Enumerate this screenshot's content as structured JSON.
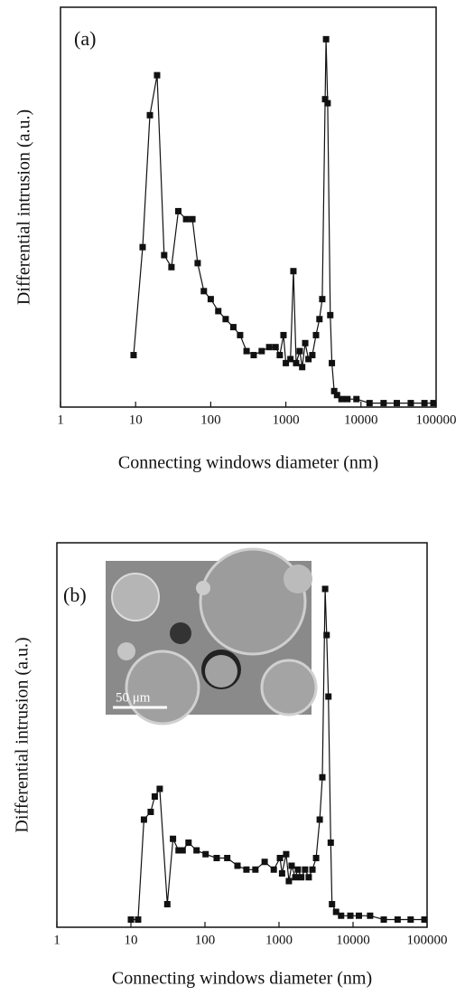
{
  "chart_data": [
    {
      "type": "line",
      "annotation": "(a)",
      "xlabel": "Connecting windows diameter (nm)",
      "ylabel": "Differential intrusion (a.u.)",
      "xscale": "log",
      "xlim": [
        1,
        100000
      ],
      "xticks": [
        1,
        10,
        100,
        1000,
        10000,
        100000
      ],
      "ylim": [
        0,
        100
      ],
      "color": "#111111",
      "x": [
        9.4,
        12.4,
        15.5,
        19.3,
        24,
        30,
        37,
        47,
        57,
        67,
        81,
        100,
        126,
        158,
        200,
        246,
        300,
        373,
        477,
        600,
        730,
        830,
        930,
        1000,
        1150,
        1260,
        1370,
        1530,
        1650,
        1810,
        2000,
        2250,
        2520,
        2800,
        3050,
        3330,
        3430,
        3600,
        3900,
        4100,
        4400,
        4800,
        5500,
        6600,
        8700,
        13000,
        20000,
        30000,
        46000,
        70000,
        92000
      ],
      "values": [
        13,
        40,
        73,
        83,
        38,
        35,
        49,
        47,
        47,
        36,
        29,
        27,
        24,
        22,
        20,
        18,
        14,
        13,
        14,
        15,
        15,
        13,
        18,
        11,
        12,
        34,
        11,
        14,
        10,
        16,
        12,
        13,
        18,
        22,
        27,
        77,
        92,
        76,
        23,
        11,
        4,
        3,
        2,
        2,
        2,
        1,
        1,
        1,
        1,
        1,
        1
      ]
    },
    {
      "type": "line",
      "annotation": "(b)",
      "xlabel": "Connecting windows diameter (nm)",
      "ylabel": "Differential intrusion (a.u.)",
      "xscale": "log",
      "xlim": [
        1,
        100000
      ],
      "xticks": [
        1,
        10,
        100,
        1000,
        10000,
        100000
      ],
      "ylim": [
        0,
        100
      ],
      "color": "#111111",
      "inset_label": "50 μm",
      "x": [
        10,
        12.5,
        15,
        18.5,
        21,
        24.5,
        31,
        37,
        44,
        50,
        60,
        77,
        102,
        144,
        200,
        275,
        363,
        480,
        640,
        850,
        1030,
        1100,
        1250,
        1360,
        1480,
        1660,
        1800,
        2000,
        2250,
        2520,
        2830,
        3170,
        3550,
        3850,
        4200,
        4400,
        4650,
        5000,
        5200,
        5900,
        6900,
        9200,
        12000,
        17000,
        26000,
        40000,
        60000,
        92000
      ],
      "values": [
        2,
        2,
        28,
        30,
        34,
        36,
        6,
        23,
        20,
        20,
        22,
        20,
        19,
        18,
        18,
        16,
        15,
        15,
        17,
        15,
        18,
        14,
        19,
        12,
        16,
        13,
        15,
        13,
        15,
        13,
        15,
        18,
        28,
        39,
        88,
        76,
        60,
        22,
        6,
        4,
        3,
        3,
        3,
        3,
        2,
        2,
        2,
        2
      ]
    }
  ]
}
